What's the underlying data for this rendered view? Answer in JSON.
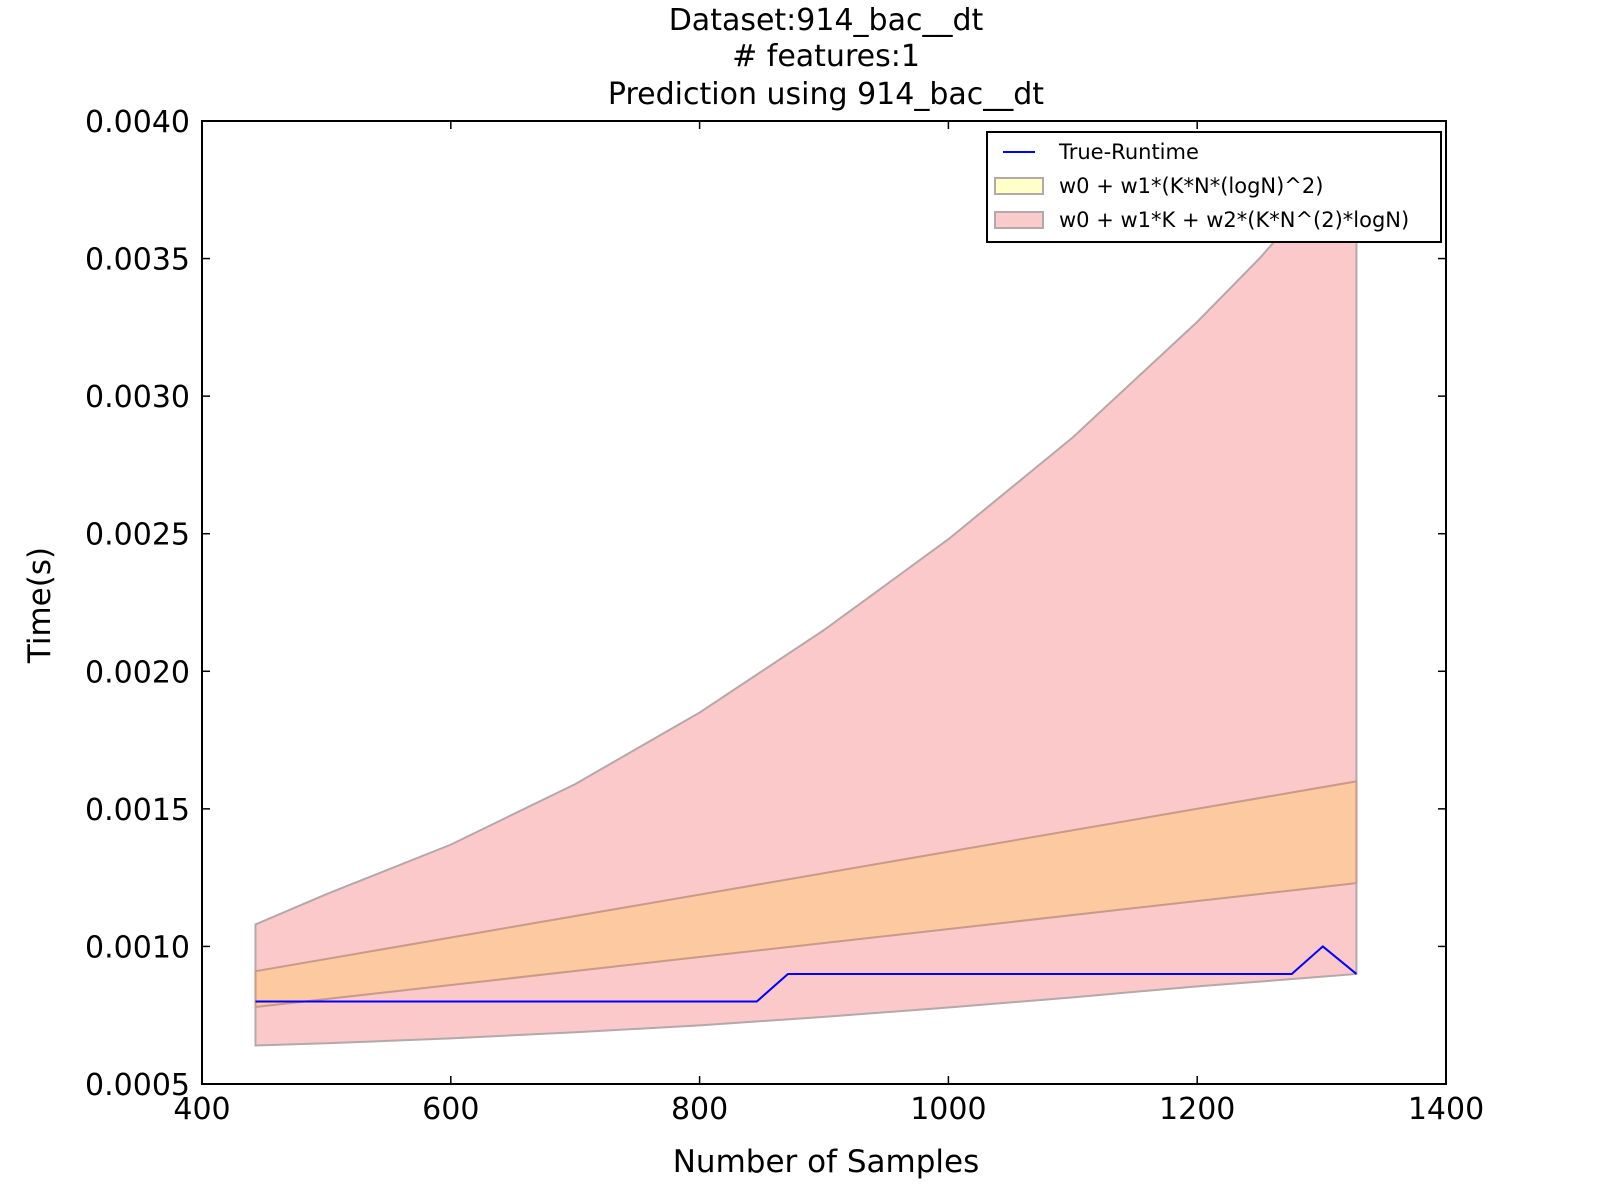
{
  "chart_data": {
    "type": "area",
    "title_lines": [
      "Dataset:914_bac__dt",
      "# features:1",
      "Prediction using 914_bac__dt"
    ],
    "xlabel": "Number of Samples",
    "ylabel": "Time(s)",
    "xlim": [
      400,
      1400
    ],
    "ylim": [
      0.0005,
      0.004
    ],
    "xticks": [
      "400",
      "600",
      "800",
      "1000",
      "1200",
      "1400"
    ],
    "yticks": [
      "0.0005",
      "0.0010",
      "0.0015",
      "0.0020",
      "0.0025",
      "0.0030",
      "0.0035",
      "0.0040"
    ],
    "grid": false,
    "legend_position": "top-right",
    "legend": [
      {
        "label": "True-Runtime",
        "kind": "line",
        "color": "#0000ff"
      },
      {
        "label": "w0 + w1*(K*N*(logN)^2)",
        "kind": "patch",
        "color": "#ffff99"
      },
      {
        "label": "w0 + w1*K + w2*(K*N^(2)*logN)",
        "kind": "patch",
        "color": "#f4a0a0"
      }
    ],
    "series": [
      {
        "name": "True-Runtime",
        "kind": "line",
        "color": "#0000ff",
        "x": [
          443,
          846,
          871,
          1276,
          1301,
          1328
        ],
        "y": [
          0.0008,
          0.0008,
          0.0009,
          0.0009,
          0.001,
          0.0009
        ]
      },
      {
        "name": "w0 + w1*K + w2*(K*N^(2)*logN)",
        "kind": "band",
        "fill": "#fbc9c9",
        "edge": "#b5a8a8",
        "x": [
          443,
          500,
          600,
          700,
          800,
          900,
          1000,
          1100,
          1200,
          1250,
          1328
        ],
        "lower": [
          0.00064,
          0.000648,
          0.000666,
          0.000688,
          0.000713,
          0.000744,
          0.000778,
          0.000815,
          0.000855,
          0.000872,
          0.0009
        ],
        "upper": [
          0.00108,
          0.00119,
          0.00137,
          0.00159,
          0.00185,
          0.00215,
          0.00248,
          0.00285,
          0.00327,
          0.0035,
          0.0039
        ]
      },
      {
        "name": "w0 + w1*(K*N*(logN)^2)",
        "kind": "band",
        "fill": "#fcc9a0",
        "edge": "#c9998a",
        "x": [
          443,
          1328
        ],
        "lower": [
          0.00078,
          0.00123
        ],
        "upper": [
          0.00091,
          0.0016
        ]
      }
    ]
  }
}
